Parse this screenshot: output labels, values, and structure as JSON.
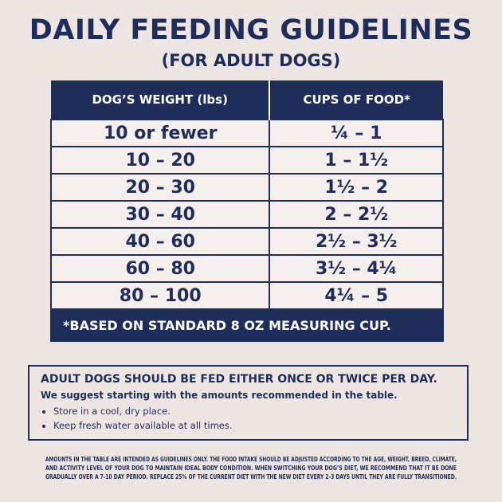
{
  "header": {
    "title": "DAILY FEEDING GUIDELINES",
    "subtitle": "(FOR ADULT DOGS)"
  },
  "table": {
    "columns": [
      "DOG’S WEIGHT (lbs)",
      "CUPS OF FOOD*"
    ],
    "rows": [
      [
        "10 or fewer",
        "¼ – 1"
      ],
      [
        "10 – 20",
        "1 – 1½"
      ],
      [
        "20 – 30",
        "1½ – 2"
      ],
      [
        "30 – 40",
        "2 – 2½"
      ],
      [
        "40 – 60",
        "2½ – 3½"
      ],
      [
        "60 – 80",
        "3½ – 4¼"
      ],
      [
        "80 – 100",
        "4¼ – 5"
      ]
    ],
    "footnote": "*BASED ON STANDARD 8 OZ MEASURING CUP."
  },
  "note": {
    "heading": "ADULT DOGS SHOULD BE FED EITHER ONCE OR TWICE PER DAY.",
    "text": "We suggest starting with the amounts recommended in the table.",
    "bullets": [
      "Store in a cool, dry place.",
      "Keep fresh water available at all times."
    ]
  },
  "disclaimer": [
    "AMOUNTS IN THE TABLE ARE INTENDED AS GUIDELINES ONLY. THE FOOD INTAKE SHOULD BE ADJUSTED ACCORDING TO THE AGE, WEIGHT, BREED, CLIMATE,",
    "AND ACTIVITY LEVEL OF YOUR DOG TO MAINTAIN IDEAL BODY CONDITION. WHEN SWITCHING YOUR DOG’S DIET, WE RECOMMEND THAT IT BE DONE",
    "GRADUALLY OVER A 7-10 DAY PERIOD. REPLACE 25% OF THE CURRENT DIET WITH THE NEW DIET EVERY 2-3 DAYS UNTIL THEY ARE FULLY TRANSITIONED."
  ]
}
